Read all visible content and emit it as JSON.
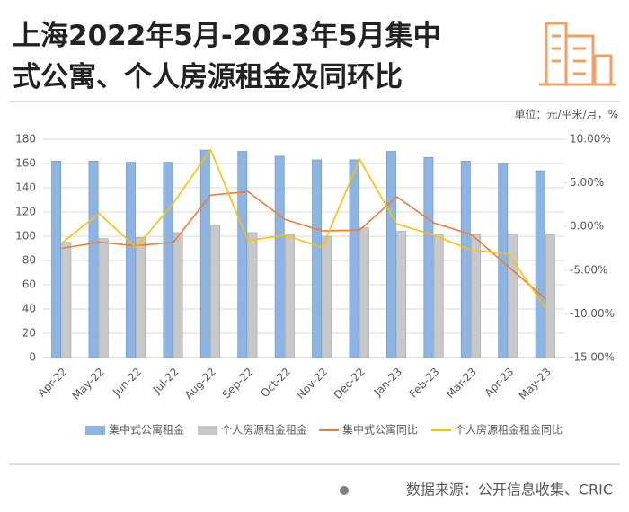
{
  "chart_data": {
    "type": "bar_line",
    "title": [
      "上海2022年5月-2023年5月集中",
      "式公寓、个人房源租金及同环比"
    ],
    "unit_note": "单位：元/平米/月，%",
    "source": "数据来源：公开信息收集、CRIC",
    "categories": [
      "Apr-22",
      "May-22",
      "Jun-22",
      "Jul-22",
      "Aug-22",
      "Sep-22",
      "Oct-22",
      "Nov-22",
      "Dec-22",
      "Jan-23",
      "Feb-23",
      "Mar-23",
      "Apr-23",
      "May-23"
    ],
    "series": [
      {
        "name": "集中式公寓租金",
        "type": "bar",
        "color": "#8db4e2",
        "values": [
          162,
          162,
          161,
          161,
          171,
          170,
          166,
          163,
          163,
          170,
          165,
          162,
          160,
          154
        ]
      },
      {
        "name": "个人房源租金租金",
        "type": "bar",
        "color": "#c8c8c8",
        "values": [
          95,
          98,
          99,
          103,
          109,
          103,
          101,
          100,
          107,
          104,
          102,
          101,
          102,
          101
        ]
      },
      {
        "name": "集中式公寓同比",
        "type": "line",
        "axis": "y2",
        "color": "#ed7d31",
        "values": [
          -2.5,
          -1.8,
          -2.2,
          -1.8,
          3.6,
          4.0,
          0.8,
          -0.5,
          -0.4,
          3.4,
          0.4,
          -0.9,
          -4.6,
          -8.3
        ]
      },
      {
        "name": "个人房源租金租金同比",
        "type": "line",
        "axis": "y2",
        "color": "#ffc000",
        "values": [
          -1.9,
          1.5,
          -2.4,
          2.7,
          8.8,
          -1.6,
          -1.0,
          -2.4,
          7.7,
          0.3,
          -1.0,
          -2.7,
          -3.1,
          -9.4
        ]
      }
    ],
    "ylim": [
      0,
      180
    ],
    "yticks": [
      0,
      20,
      40,
      60,
      80,
      100,
      120,
      140,
      160,
      180
    ],
    "y2lim": [
      -15,
      10
    ],
    "y2ticks": [
      {
        "value": -15,
        "label": "-15.00%"
      },
      {
        "value": -10,
        "label": "-10.00%"
      },
      {
        "value": -5,
        "label": "-5.00%"
      },
      {
        "value": 0,
        "label": "0.00%"
      },
      {
        "value": 5,
        "label": "5.00%"
      },
      {
        "value": 10,
        "label": "10.00%"
      }
    ],
    "grid": true
  }
}
